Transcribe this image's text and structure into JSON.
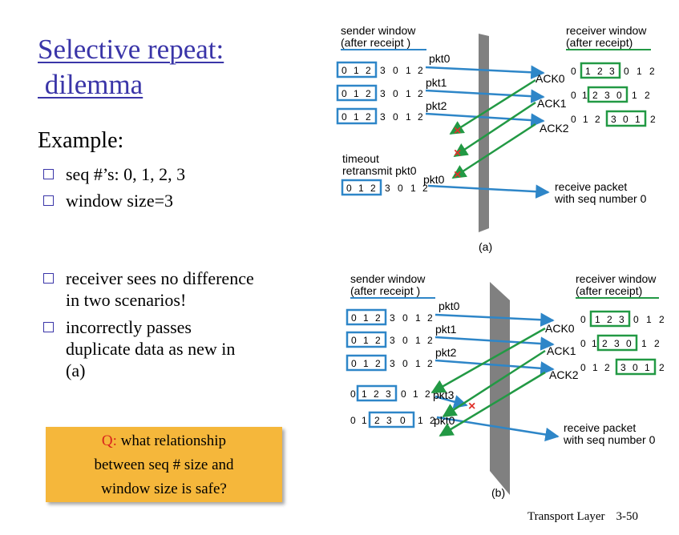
{
  "title": {
    "line1": "Selective repeat:",
    "line2": " dilemma"
  },
  "example_heading": "Example:",
  "bullets_top": [
    "seq #’s: 0, 1, 2, 3",
    "window size=3"
  ],
  "bullets_bottom": [
    "receiver sees no difference in two scenarios!",
    "incorrectly passes duplicate data as new in (a)"
  ],
  "question": {
    "prefix": "Q:",
    "text_line1": " what relationship",
    "text_line2": "between seq # size and",
    "text_line3": "window size is safe?"
  },
  "footer": {
    "label": "Transport Layer",
    "page": "3-50"
  },
  "colors": {
    "title": "#3a35a8",
    "sender_box": "#2e86c8",
    "receiver_box": "#229944",
    "loss_mark": "#e0302a",
    "question_bg": "#f5b73b"
  },
  "diagram_a": {
    "caption": "(a)",
    "sender_header": [
      "sender window",
      "(after receipt )"
    ],
    "receiver_header": [
      "receiver window",
      "(after receipt)"
    ],
    "sender_rows": [
      {
        "digits": [
          "0",
          "1",
          "2",
          "3",
          "0",
          "1",
          "2"
        ],
        "box_start": 0
      },
      {
        "digits": [
          "0",
          "1",
          "2",
          "3",
          "0",
          "1",
          "2"
        ],
        "box_start": 0
      },
      {
        "digits": [
          "0",
          "1",
          "2",
          "3",
          "0",
          "1",
          "2"
        ],
        "box_start": 0
      },
      {
        "digits": [
          "0",
          "1",
          "2",
          "3",
          "0",
          "1",
          "2"
        ],
        "box_start": 0
      }
    ],
    "receiver_rows": [
      {
        "digits": [
          "0",
          "1",
          "2",
          "3",
          "0",
          "1",
          "2"
        ],
        "box_start": 1
      },
      {
        "digits": [
          "0",
          "1",
          "2",
          "3",
          "0",
          "1",
          "2"
        ],
        "box_start": 2
      },
      {
        "digits": [
          "0",
          "1",
          "2",
          "3",
          "0",
          "1",
          "2"
        ],
        "box_start": 3
      }
    ],
    "pkt_labels": [
      "pkt0",
      "pkt1",
      "pkt2",
      "pkt0"
    ],
    "ack_labels": [
      "ACK0",
      "ACK1",
      "ACK2"
    ],
    "timeout_label": [
      "timeout",
      "retransmit pkt0"
    ],
    "receive_label": [
      "receive packet",
      "with seq number 0"
    ]
  },
  "diagram_b": {
    "caption": "(b)",
    "sender_header": [
      "sender window",
      "(after receipt )"
    ],
    "receiver_header": [
      "receiver window",
      "(after receipt)"
    ],
    "sender_rows": [
      {
        "digits": [
          "0",
          "1",
          "2",
          "3",
          "0",
          "1",
          "2"
        ],
        "box_start": 0
      },
      {
        "digits": [
          "0",
          "1",
          "2",
          "3",
          "0",
          "1",
          "2"
        ],
        "box_start": 0
      },
      {
        "digits": [
          "0",
          "1",
          "2",
          "3",
          "0",
          "1",
          "2"
        ],
        "box_start": 0
      },
      {
        "digits": [
          "0",
          "1",
          "2",
          "3",
          "0",
          "1",
          "2"
        ],
        "box_start": 1
      },
      {
        "digits": [
          "0",
          "1",
          "2",
          "3",
          "0",
          "1",
          "2"
        ],
        "box_start": 2
      }
    ],
    "receiver_rows": [
      {
        "digits": [
          "0",
          "1",
          "2",
          "3",
          "0",
          "1",
          "2"
        ],
        "box_start": 1
      },
      {
        "digits": [
          "0",
          "1",
          "2",
          "3",
          "0",
          "1",
          "2"
        ],
        "box_start": 2
      },
      {
        "digits": [
          "0",
          "1",
          "2",
          "3",
          "0",
          "1",
          "2"
        ],
        "box_start": 3
      }
    ],
    "pkt_labels": [
      "pkt0",
      "pkt1",
      "pkt2",
      "pkt3",
      "pkt0"
    ],
    "ack_labels": [
      "ACK0",
      "ACK1",
      "ACK2"
    ],
    "receive_label": [
      "receive packet",
      "with seq number 0"
    ]
  }
}
